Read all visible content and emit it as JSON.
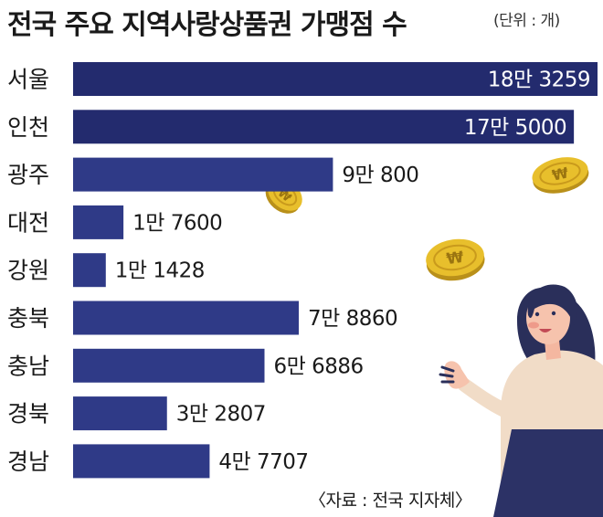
{
  "title": "전국 주요 지역사랑상품권 가맹점 수",
  "unit_note": "(단위 : 개)",
  "source": "〈자료 : 전국 지자체〉",
  "colors": {
    "bar": "#2f3a87",
    "bar_dark": "#232b6e",
    "coin": "#e8bf2c"
  },
  "chart_data": {
    "type": "bar",
    "orientation": "horizontal",
    "categories": [
      "서울",
      "인천",
      "광주",
      "대전",
      "강원",
      "충북",
      "충남",
      "경북",
      "경남"
    ],
    "values": [
      183259,
      175000,
      90800,
      17600,
      11428,
      78860,
      66886,
      32807,
      47707
    ],
    "value_labels": [
      "18만 3259",
      "17만 5000",
      "9만 800",
      "1만 7600",
      "1만 1428",
      "7만 8860",
      "6만 6886",
      "3만 2807",
      "4만 7707"
    ],
    "title": "전국 주요 지역사랑상품권 가맹점 수",
    "xlabel": "",
    "ylabel": "",
    "xlim": [
      0,
      183259
    ],
    "grid": false,
    "legend": "none"
  }
}
